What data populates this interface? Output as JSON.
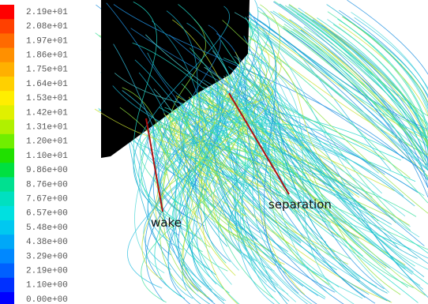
{
  "colorbar": {
    "entries": [
      {
        "label": "2.19e+01",
        "color": "#ff0000"
      },
      {
        "label": "2.08e+01",
        "color": "#ff4000"
      },
      {
        "label": "1.97e+01",
        "color": "#ff6a00"
      },
      {
        "label": "1.86e+01",
        "color": "#ff9000"
      },
      {
        "label": "1.75e+01",
        "color": "#ffb000"
      },
      {
        "label": "1.64e+01",
        "color": "#ffd000"
      },
      {
        "label": "1.53e+01",
        "color": "#ffee00"
      },
      {
        "label": "1.42e+01",
        "color": "#e0f000"
      },
      {
        "label": "1.31e+01",
        "color": "#b0f000"
      },
      {
        "label": "1.20e+01",
        "color": "#70ee00"
      },
      {
        "label": "1.10e+01",
        "color": "#20e000"
      },
      {
        "label": "9.86e+00",
        "color": "#00e040"
      },
      {
        "label": "8.76e+00",
        "color": "#00e090"
      },
      {
        "label": "7.67e+00",
        "color": "#00e0c0"
      },
      {
        "label": "6.57e+00",
        "color": "#00e0e0"
      },
      {
        "label": "5.48e+00",
        "color": "#00c8f0"
      },
      {
        "label": "4.38e+00",
        "color": "#00a8f8"
      },
      {
        "label": "3.29e+00",
        "color": "#0088ff"
      },
      {
        "label": "2.19e+00",
        "color": "#0060ff"
      },
      {
        "label": "1.10e+00",
        "color": "#0030ff"
      },
      {
        "label": "0.00e+00",
        "color": "#0000ff"
      }
    ]
  },
  "annotations": {
    "wake": "wake",
    "separation": "separation"
  }
}
